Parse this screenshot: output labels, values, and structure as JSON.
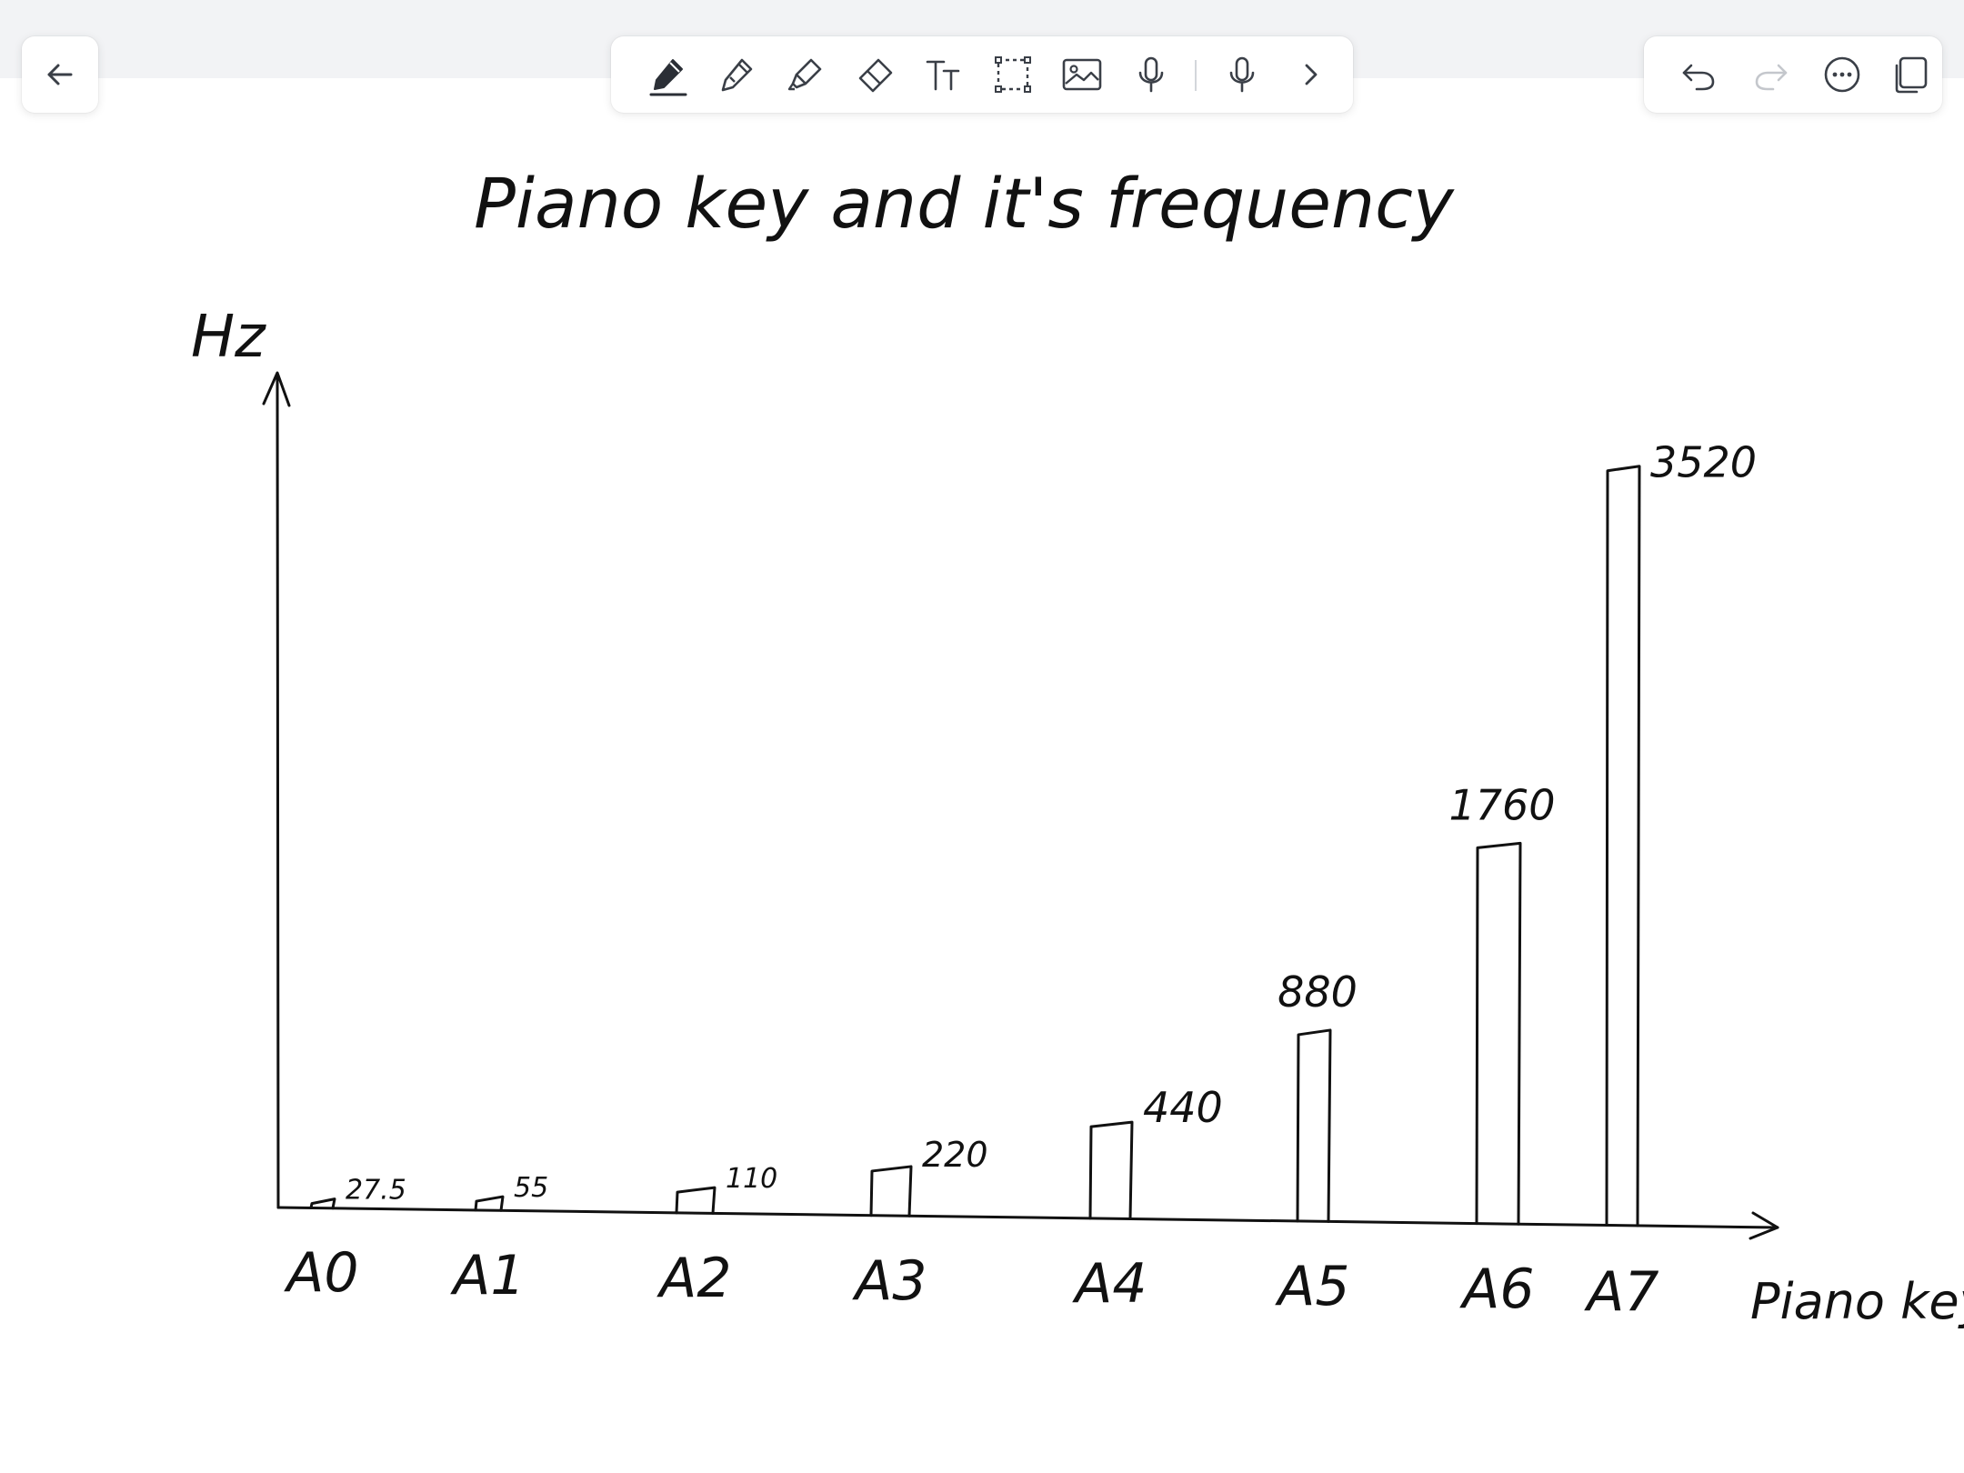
{
  "toolbar": {
    "back_icon": "arrow-left-icon",
    "tools": [
      {
        "name": "pen",
        "icon": "pen-icon",
        "active": true
      },
      {
        "name": "pencil",
        "icon": "pencil-icon"
      },
      {
        "name": "highlighter",
        "icon": "highlighter-icon"
      },
      {
        "name": "eraser",
        "icon": "eraser-icon"
      },
      {
        "name": "text",
        "icon": "text-icon"
      },
      {
        "name": "lasso",
        "icon": "lasso-select-icon"
      },
      {
        "name": "image",
        "icon": "image-icon"
      },
      {
        "name": "record",
        "icon": "microphone-icon"
      },
      {
        "name": "record-2",
        "icon": "microphone-icon"
      },
      {
        "name": "more",
        "icon": "chevron-right-icon"
      }
    ],
    "right": [
      {
        "name": "undo",
        "icon": "undo-icon"
      },
      {
        "name": "redo",
        "icon": "redo-icon",
        "disabled": true
      },
      {
        "name": "more-options",
        "icon": "more-icon"
      },
      {
        "name": "copy-page",
        "icon": "copy-icon"
      }
    ]
  },
  "colors": {
    "ink": "#111111",
    "toolbar_bg": "#f2f3f5",
    "icon": "#3a3f47",
    "icon_disabled": "#c4c7cc"
  },
  "note": {
    "title": "Piano key and it's frequency"
  },
  "chart_data": {
    "type": "bar",
    "title": "Piano key and it's frequency",
    "xlabel": "Piano key",
    "ylabel": "Hz",
    "categories": [
      "A0",
      "A1",
      "A2",
      "A3",
      "A4",
      "A5",
      "A6",
      "A7"
    ],
    "values": [
      27.5,
      55,
      110,
      220,
      440,
      880,
      1760,
      3520
    ],
    "data_labels": [
      "27.5",
      "55",
      "110",
      "220",
      "440",
      "880",
      "1760",
      "3520"
    ],
    "ylim": [
      0,
      3520
    ],
    "grid": false,
    "legend": "none"
  }
}
